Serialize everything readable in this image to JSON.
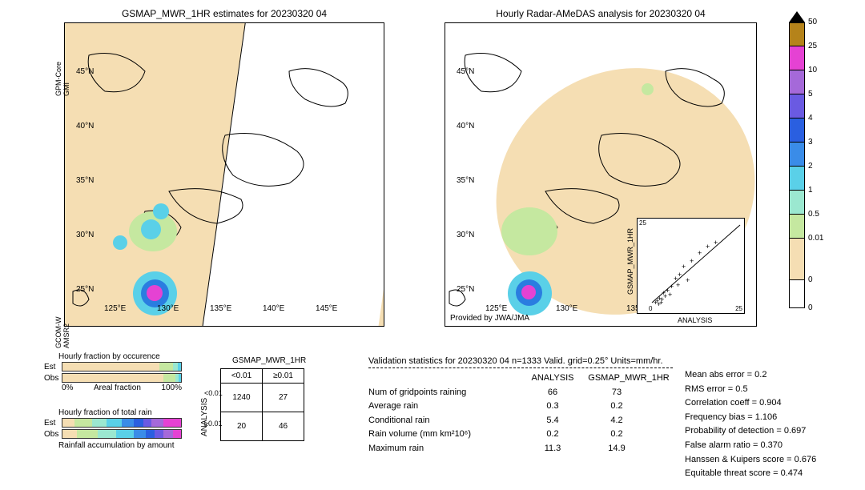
{
  "titles": {
    "left": "GSMAP_MWR_1HR estimates for 20230320 04",
    "right": "Hourly Radar-AMeDAS analysis for 20230320 04"
  },
  "maps": {
    "lats": [
      "45°N",
      "40°N",
      "35°N",
      "30°N",
      "25°N"
    ],
    "lons_left": [
      "125°E",
      "130°E",
      "135°E",
      "140°E",
      "145°E"
    ],
    "lons_right": [
      "125°E",
      "130°E",
      "135°E"
    ],
    "bg_color": "#f5deb3",
    "green": "#c5e8a0",
    "cyan": "#5ad0e8",
    "blue": "#2a7de0",
    "magenta": "#e542d3",
    "sat_labels": {
      "top": "GPM-Core\nGMI",
      "bottom": "GCOM-W\nAMSR2"
    },
    "provided": "Provided by JWA/JMA"
  },
  "colorbar": {
    "ticks": [
      "50",
      "25",
      "10",
      "5",
      "4",
      "3",
      "2",
      "1",
      "0.5",
      "0.01",
      "0"
    ],
    "colors": [
      "#b5831a",
      "#e542d3",
      "#a569d9",
      "#6a5ae2",
      "#2a5fe0",
      "#3a8ce8",
      "#5ad0e8",
      "#9be8d0",
      "#c5e8a0",
      "#f5deb3",
      "#ffffff"
    ],
    "heights": [
      30,
      30,
      30,
      30,
      30,
      30,
      30,
      30,
      30,
      52,
      35
    ]
  },
  "inset": {
    "xlabel": "ANALYSIS",
    "ylabel": "GSMAP_MWR_1HR",
    "ticks": [
      "0",
      "5",
      "10",
      "15",
      "20",
      "25"
    ]
  },
  "bars": {
    "title1": "Hourly fraction by occurence",
    "title2": "Hourly fraction of total rain",
    "title3": "Rainfall accumulation by amount",
    "rows": [
      "Est",
      "Obs"
    ],
    "xlabels": [
      "0%",
      "Areal fraction",
      "100%"
    ],
    "colors": [
      "#f5deb3",
      "#c5e8a0",
      "#9be8d0",
      "#5ad0e8",
      "#3a8ce8",
      "#2a5fe0",
      "#6a5ae2",
      "#a569d9",
      "#e542d3"
    ],
    "occ_est": [
      82,
      11,
      4,
      3
    ],
    "occ_obs": [
      85,
      10,
      3,
      2
    ],
    "tot_est": [
      10,
      15,
      12,
      13,
      10,
      8,
      7,
      10,
      15
    ],
    "tot_obs": [
      12,
      18,
      15,
      15,
      10,
      8,
      7,
      8,
      7
    ]
  },
  "contingency": {
    "col_header": "GSMAP_MWR_1HR",
    "row_header": "ANALYSIS",
    "cols": [
      "<0.01",
      "≥0.01"
    ],
    "rows": [
      "<0.01",
      "≥0.01"
    ],
    "cells": [
      [
        "1240",
        "27"
      ],
      [
        "20",
        "46"
      ]
    ]
  },
  "validation": {
    "title": "Validation statistics for 20230320 04  n=1333 Valid. grid=0.25°  Units=mm/hr.",
    "col_headers": [
      "ANALYSIS",
      "GSMAP_MWR_1HR"
    ],
    "rows": [
      {
        "label": "Num of gridpoints raining",
        "a": "66",
        "b": "73"
      },
      {
        "label": "Average rain",
        "a": "0.3",
        "b": "0.2"
      },
      {
        "label": "Conditional rain",
        "a": "5.4",
        "b": "4.2"
      },
      {
        "label": "Rain volume (mm km²10⁶)",
        "a": "0.2",
        "b": "0.2"
      },
      {
        "label": "Maximum rain",
        "a": "11.3",
        "b": "14.9"
      }
    ],
    "metrics": [
      {
        "label": "Mean abs error =",
        "val": "0.2"
      },
      {
        "label": "RMS error =",
        "val": "0.5"
      },
      {
        "label": "Correlation coeff =",
        "val": "0.904"
      },
      {
        "label": "Frequency bias =",
        "val": "1.106"
      },
      {
        "label": "Probability of detection =",
        "val": "0.697"
      },
      {
        "label": "False alarm ratio =",
        "val": "0.370"
      },
      {
        "label": "Hanssen & Kuipers score =",
        "val": "0.676"
      },
      {
        "label": "Equitable threat score =",
        "val": "0.474"
      }
    ]
  }
}
